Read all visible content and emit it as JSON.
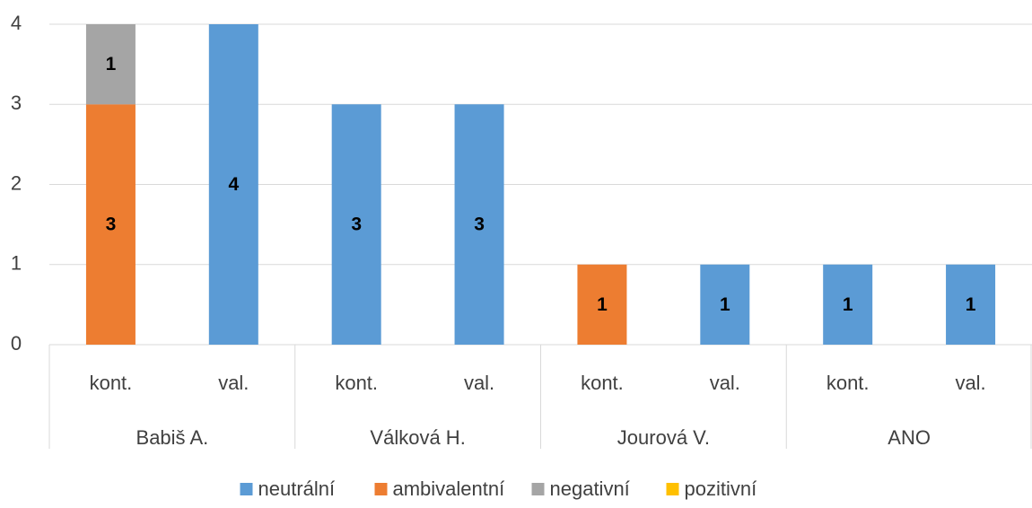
{
  "chart_data": {
    "type": "stacked_bar",
    "categories": [
      "kont.",
      "val.",
      "kont.",
      "val.",
      "kont.",
      "val.",
      "kont.",
      "val."
    ],
    "groups": [
      "Babiš A.",
      "Válková H.",
      "Jourová V.",
      "ANO"
    ],
    "series": [
      {
        "name": "neutrální",
        "color": "#5b9bd5",
        "values": [
          null,
          4,
          3,
          3,
          null,
          1,
          1,
          1
        ]
      },
      {
        "name": "ambivalentní",
        "color": "#ed7d31",
        "values": [
          3,
          null,
          null,
          null,
          1,
          null,
          null,
          null
        ]
      },
      {
        "name": "negativní",
        "color": "#a5a5a5",
        "values": [
          1,
          null,
          null,
          null,
          null,
          null,
          null,
          null
        ]
      },
      {
        "name": "pozitivní",
        "color": "#ffc000",
        "values": [
          null,
          null,
          null,
          null,
          null,
          null,
          null,
          null
        ]
      }
    ],
    "ylim": [
      0,
      4
    ],
    "yticks": [
      0,
      1,
      2,
      3,
      4
    ],
    "grid": true,
    "legend": "bottom"
  }
}
